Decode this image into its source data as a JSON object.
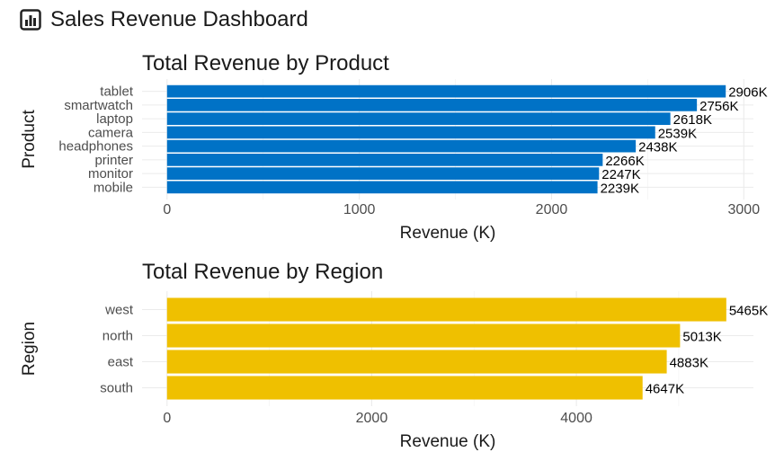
{
  "dashboard": {
    "title": "Sales Revenue Dashboard",
    "icon": "bar-chart-icon"
  },
  "chart_data": [
    {
      "type": "bar",
      "orientation": "horizontal",
      "title": "Total Revenue by Product",
      "xlabel": "Revenue (K)",
      "ylabel": "Product",
      "categories": [
        "tablet",
        "smartwatch",
        "laptop",
        "camera",
        "headphones",
        "printer",
        "monitor",
        "mobile"
      ],
      "values": [
        2906,
        2756,
        2618,
        2539,
        2438,
        2266,
        2247,
        2239
      ],
      "data_labels": [
        "2906K",
        "2756K",
        "2618K",
        "2539K",
        "2438K",
        "2266K",
        "2247K",
        "2239K"
      ],
      "xticks": [
        0,
        1000,
        2000,
        3000
      ],
      "xlim": [
        -130,
        3050
      ],
      "color": "#0072c6",
      "grid": true
    },
    {
      "type": "bar",
      "orientation": "horizontal",
      "title": "Total Revenue by Region",
      "xlabel": "Revenue (K)",
      "ylabel": "Region",
      "categories": [
        "west",
        "north",
        "east",
        "south"
      ],
      "values": [
        5465,
        5013,
        4883,
        4647
      ],
      "data_labels": [
        "5465K",
        "5013K",
        "4883K",
        "4647K"
      ],
      "xticks": [
        0,
        2000,
        4000
      ],
      "xlim": [
        -244,
        5730
      ],
      "color": "#efc000",
      "grid": true
    }
  ]
}
